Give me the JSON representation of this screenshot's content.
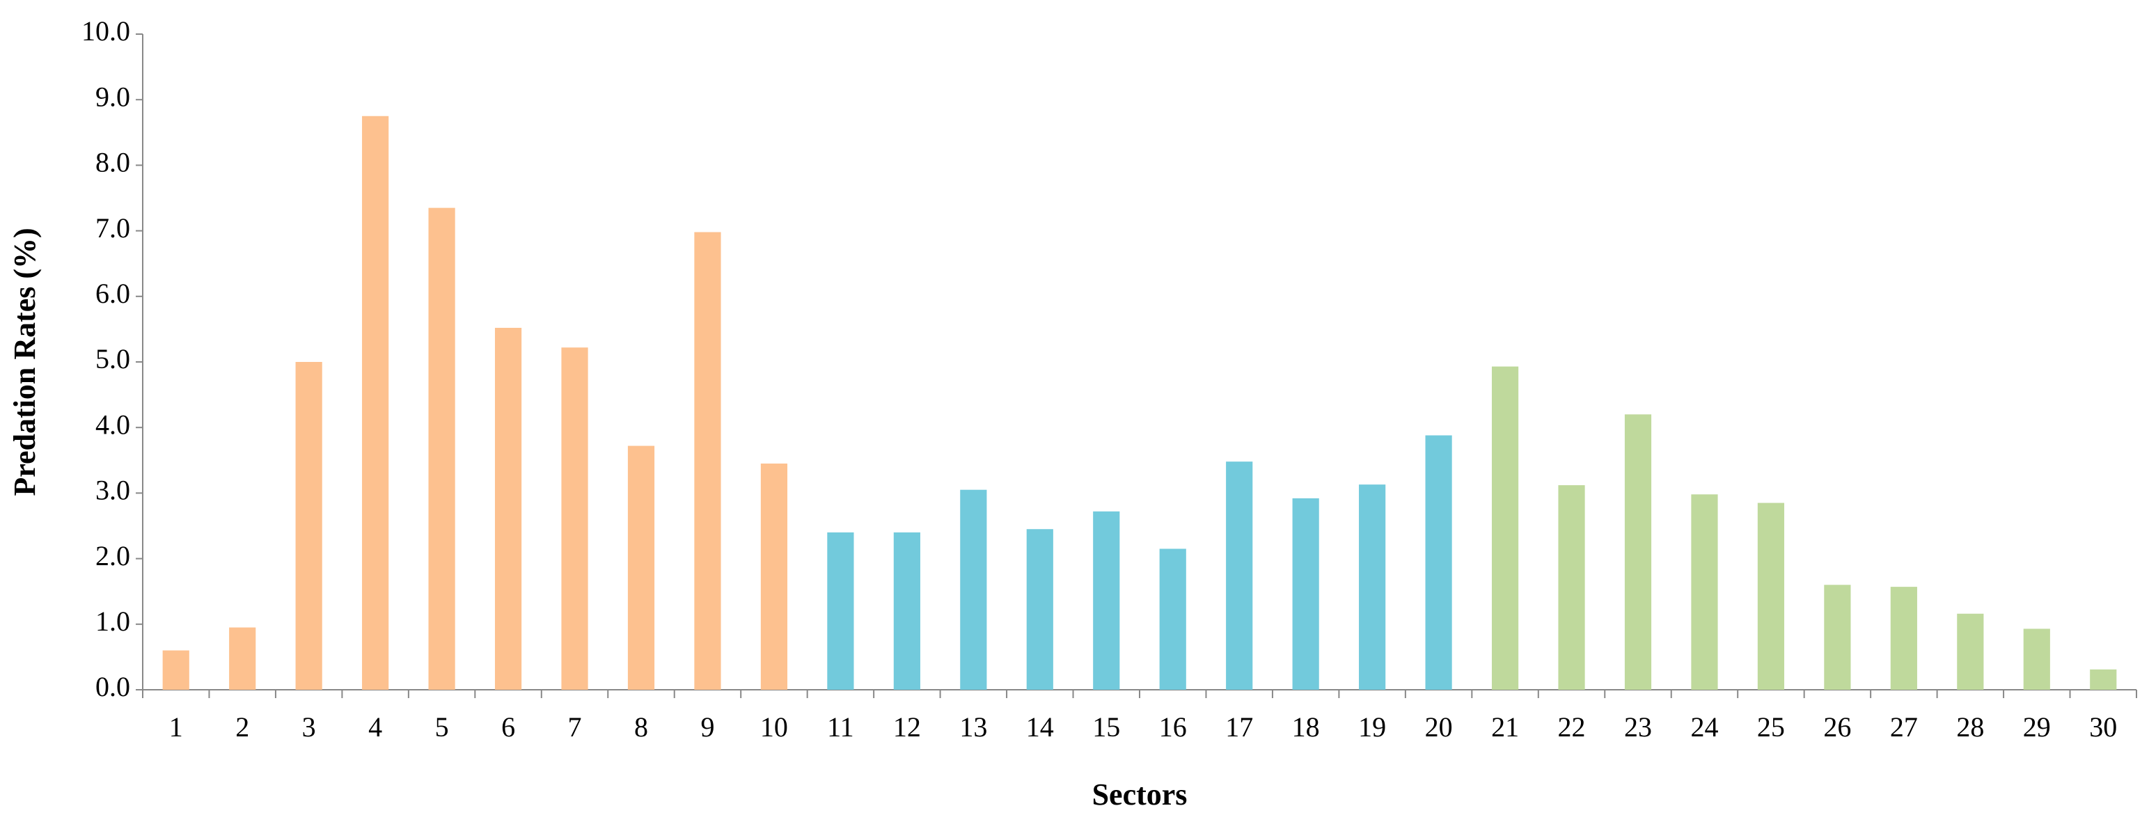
{
  "chart_data": {
    "type": "bar",
    "x_label": "Sectors",
    "y_label": "Predation Rates (%)",
    "categories": [
      "1",
      "2",
      "3",
      "4",
      "5",
      "6",
      "7",
      "8",
      "9",
      "10",
      "11",
      "12",
      "13",
      "14",
      "15",
      "16",
      "17",
      "18",
      "19",
      "20",
      "21",
      "22",
      "23",
      "24",
      "25",
      "26",
      "27",
      "28",
      "29",
      "30"
    ],
    "values": [
      0.6,
      0.95,
      5.0,
      8.75,
      7.35,
      5.52,
      5.22,
      3.72,
      6.98,
      3.45,
      2.4,
      2.4,
      3.05,
      2.45,
      2.72,
      2.15,
      3.48,
      2.92,
      3.13,
      3.88,
      4.93,
      3.12,
      4.2,
      2.98,
      2.85,
      1.6,
      1.57,
      1.16,
      0.93,
      0.31
    ],
    "colors": [
      "#fdc18f",
      "#fdc18f",
      "#fdc18f",
      "#fdc18f",
      "#fdc18f",
      "#fdc18f",
      "#fdc18f",
      "#fdc18f",
      "#fdc18f",
      "#fdc18f",
      "#72cadc",
      "#72cadc",
      "#72cadc",
      "#72cadc",
      "#72cadc",
      "#72cadc",
      "#72cadc",
      "#72cadc",
      "#72cadc",
      "#72cadc",
      "#bfd99c",
      "#bfd99c",
      "#bfd99c",
      "#bfd99c",
      "#bfd99c",
      "#bfd99c",
      "#bfd99c",
      "#bfd99c",
      "#bfd99c",
      "#bfd99c"
    ],
    "ylim": [
      0,
      10
    ],
    "yticks": [
      {
        "value": 0,
        "label": "0.0"
      },
      {
        "value": 1,
        "label": "1.0"
      },
      {
        "value": 2,
        "label": "2.0"
      },
      {
        "value": 3,
        "label": "3.0"
      },
      {
        "value": 4,
        "label": "4.0"
      },
      {
        "value": 5,
        "label": "5.0"
      },
      {
        "value": 6,
        "label": "6.0"
      },
      {
        "value": 7,
        "label": "7.0"
      },
      {
        "value": 8,
        "label": "8.0"
      },
      {
        "value": 9,
        "label": "9.0"
      },
      {
        "value": 10,
        "label": "10.0"
      }
    ],
    "grid": false
  }
}
